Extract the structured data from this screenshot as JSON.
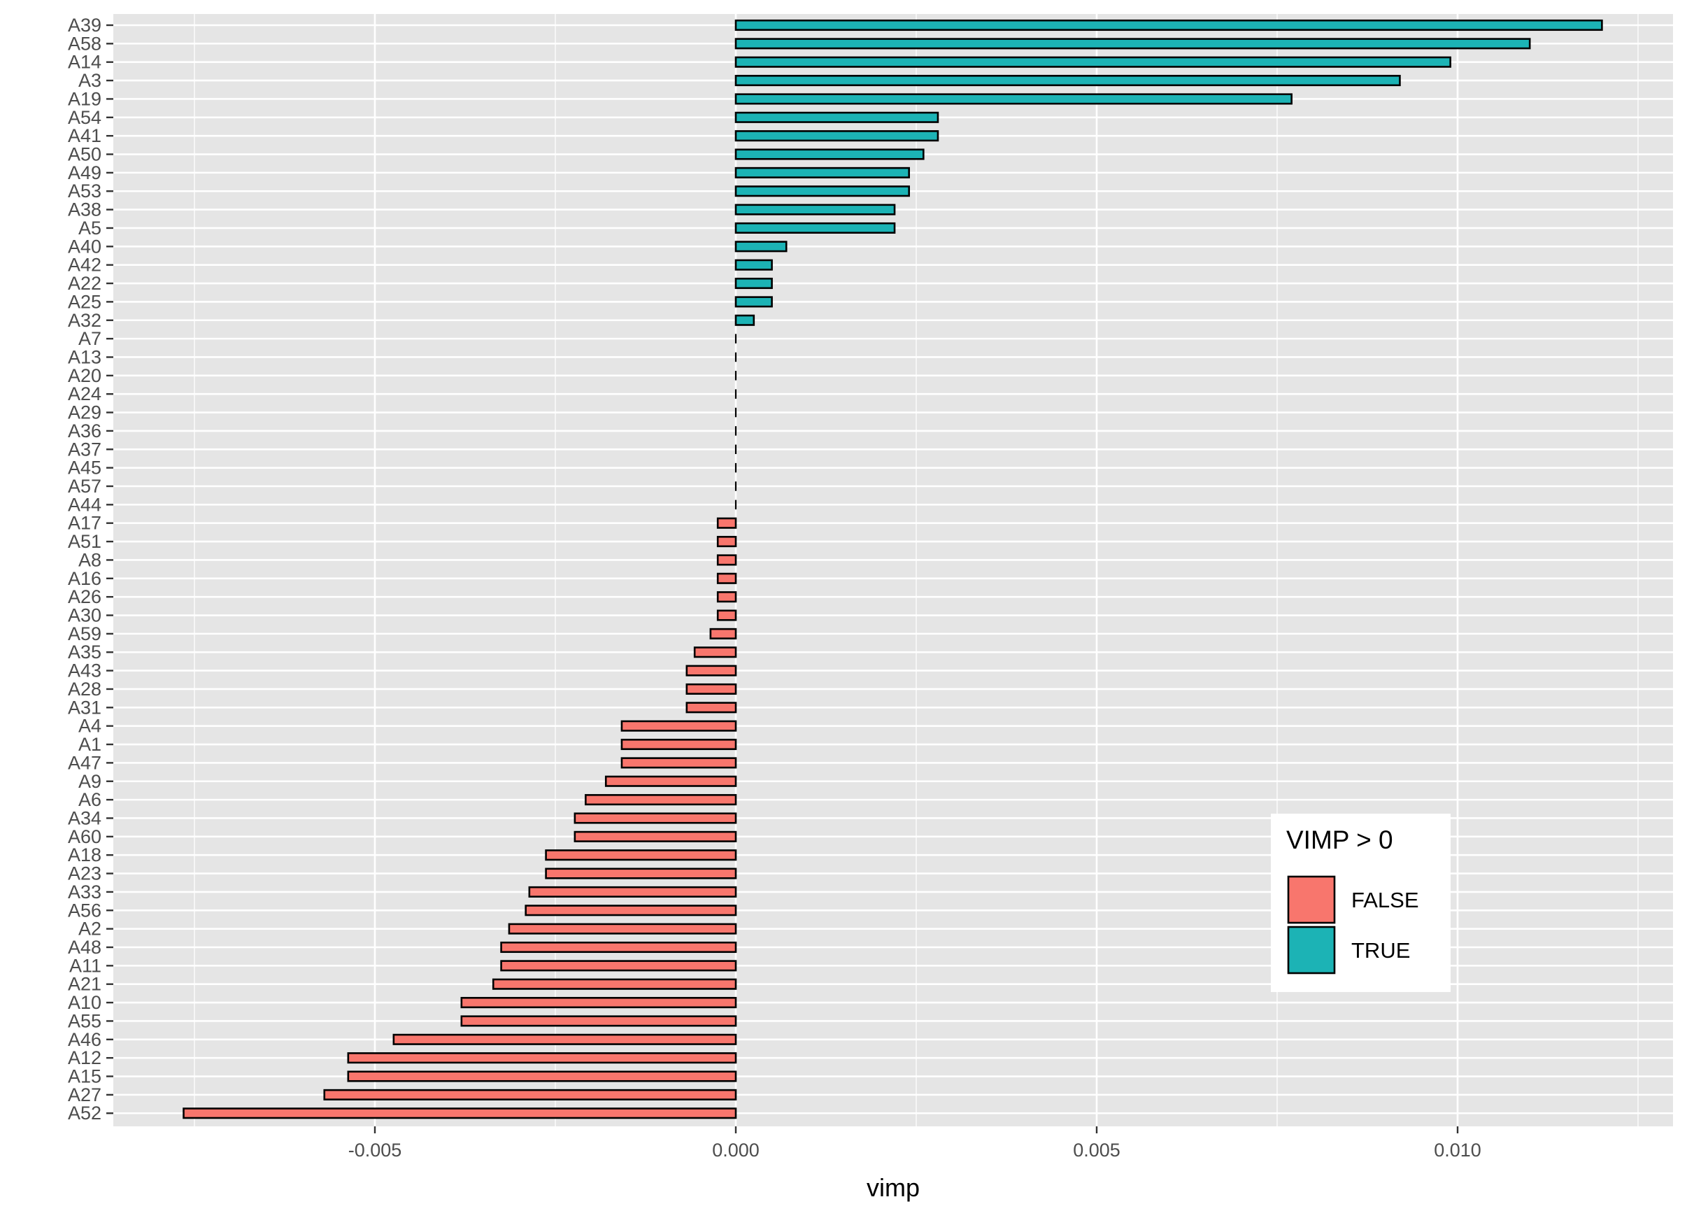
{
  "chart_data": {
    "type": "bar",
    "orientation": "horizontal",
    "xlabel": "vimp",
    "ylabel": "",
    "title": "",
    "xlim": [
      -0.0087,
      0.0129
    ],
    "x_ticks": [
      -0.005,
      0.0,
      0.005,
      0.01
    ],
    "x_tick_labels": [
      "-0.005",
      "0.000",
      "0.005",
      "0.010"
    ],
    "grid": true,
    "legend": {
      "title": "VIMP > 0",
      "position": "bottom-right inside",
      "entries": [
        {
          "label": "FALSE",
          "color": "#F8766D"
        },
        {
          "label": "TRUE",
          "color": "#00BFC4"
        }
      ]
    },
    "colors": {
      "false": "#F8766D",
      "true": "#1CB3B5",
      "panel": "#E5E5E5",
      "grid": "#FFFFFF",
      "bar_border": "#000000"
    },
    "categories": [
      "A39",
      "A58",
      "A14",
      "A3",
      "A19",
      "A54",
      "A41",
      "A50",
      "A49",
      "A53",
      "A38",
      "A5",
      "A40",
      "A42",
      "A22",
      "A25",
      "A32",
      "A7",
      "A13",
      "A20",
      "A24",
      "A29",
      "A36",
      "A37",
      "A45",
      "A57",
      "A44",
      "A17",
      "A51",
      "A8",
      "A16",
      "A26",
      "A30",
      "A59",
      "A35",
      "A43",
      "A28",
      "A31",
      "A4",
      "A1",
      "A47",
      "A9",
      "A6",
      "A34",
      "A60",
      "A18",
      "A23",
      "A33",
      "A56",
      "A2",
      "A48",
      "A11",
      "A21",
      "A10",
      "A55",
      "A46",
      "A12",
      "A15",
      "A27",
      "A52"
    ],
    "values": [
      0.012,
      0.011,
      0.0099,
      0.0092,
      0.0077,
      0.0028,
      0.0028,
      0.0026,
      0.0024,
      0.0024,
      0.0022,
      0.0022,
      0.0007,
      0.0005,
      0.0005,
      0.0005,
      0.00025,
      0,
      0,
      0,
      0,
      0,
      0,
      0,
      0,
      0,
      0,
      -0.00025,
      -0.00025,
      -0.00025,
      -0.00025,
      -0.00025,
      -0.00025,
      -0.00035,
      -0.00057,
      -0.00068,
      -0.00068,
      -0.00068,
      -0.00158,
      -0.00158,
      -0.00158,
      -0.0018,
      -0.00208,
      -0.00223,
      -0.00223,
      -0.00263,
      -0.00263,
      -0.00286,
      -0.00291,
      -0.00314,
      -0.00325,
      -0.00325,
      -0.00336,
      -0.0038,
      -0.0038,
      -0.00474,
      -0.00537,
      -0.00537,
      -0.0057,
      -0.00765
    ]
  }
}
